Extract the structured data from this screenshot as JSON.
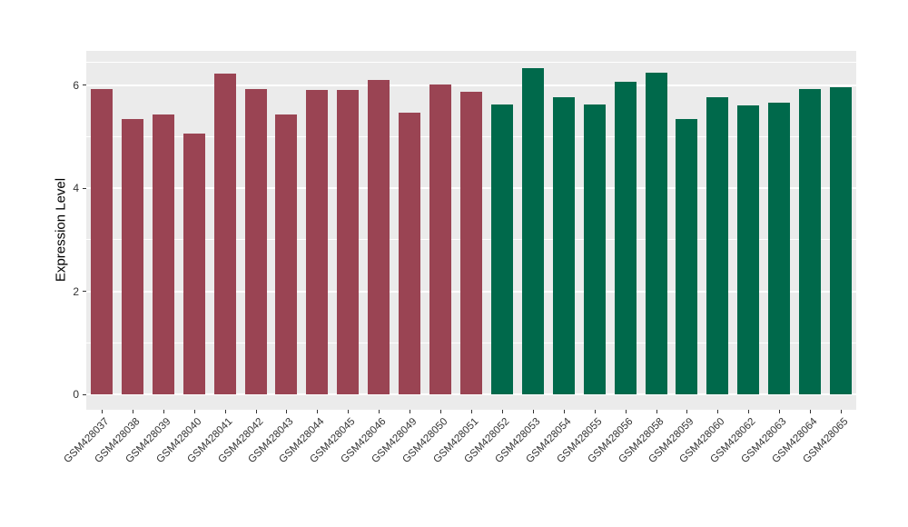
{
  "figure": {
    "background_color": "#FFFFFF",
    "panel_background_color": "#EBEBEB",
    "gridline_color": "#FFFFFF",
    "axis_text_color": "#333333",
    "axis_title_color": "#000000"
  },
  "chart_data": {
    "type": "bar",
    "title": "",
    "xlabel": "",
    "ylabel": "Expression Level",
    "categories": [
      "GSM428037",
      "GSM428038",
      "GSM428039",
      "GSM428040",
      "GSM428041",
      "GSM428042",
      "GSM428043",
      "GSM428044",
      "GSM428045",
      "GSM428046",
      "GSM428049",
      "GSM428050",
      "GSM428051",
      "GSM428052",
      "GSM428053",
      "GSM428054",
      "GSM428055",
      "GSM428056",
      "GSM428058",
      "GSM428059",
      "GSM428060",
      "GSM428062",
      "GSM428063",
      "GSM428064",
      "GSM428065"
    ],
    "values": [
      5.92,
      5.35,
      5.43,
      5.07,
      6.22,
      5.92,
      5.44,
      5.9,
      5.9,
      6.11,
      5.46,
      6.02,
      5.87,
      5.62,
      6.34,
      5.76,
      5.62,
      6.06,
      6.25,
      5.34,
      5.76,
      5.6,
      5.67,
      5.92,
      5.97
    ],
    "groups": [
      "group1",
      "group1",
      "group1",
      "group1",
      "group1",
      "group1",
      "group1",
      "group1",
      "group1",
      "group1",
      "group1",
      "group1",
      "group1",
      "group2",
      "group2",
      "group2",
      "group2",
      "group2",
      "group2",
      "group2",
      "group2",
      "group2",
      "group2",
      "group2",
      "group2"
    ],
    "group_colors": {
      "group1": "#9A4453",
      "group2": "#00694B"
    },
    "yticks": [
      0,
      2,
      4,
      6
    ],
    "minor_gridlines": [
      1,
      3,
      5,
      6.45
    ],
    "ylim": [
      -0.3,
      6.67
    ],
    "grid": true,
    "legend_position": "none",
    "x_tick_rotation_deg": 45
  }
}
